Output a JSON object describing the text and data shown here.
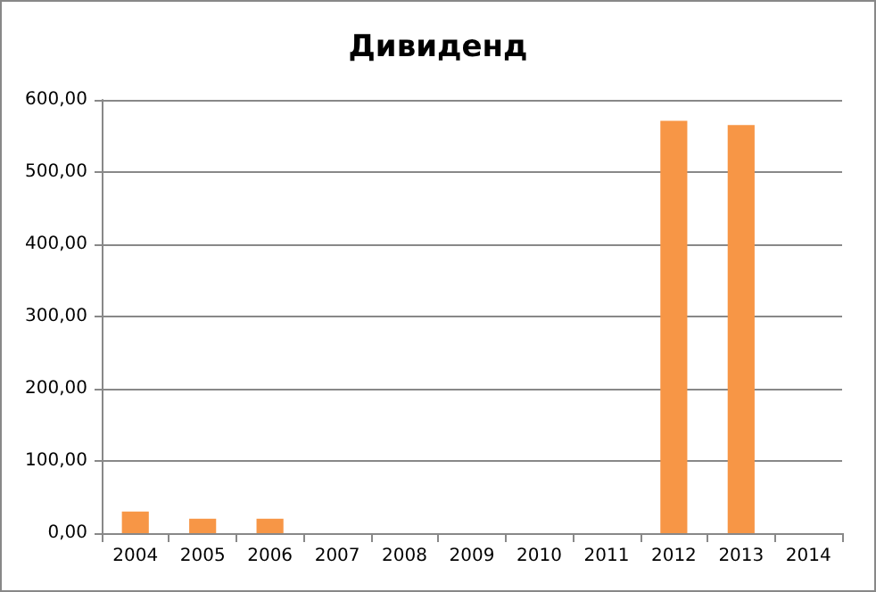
{
  "chart_data": {
    "type": "bar",
    "title": "Дивиденд",
    "categories": [
      "2004",
      "2005",
      "2006",
      "2007",
      "2008",
      "2009",
      "2010",
      "2011",
      "2012",
      "2013",
      "2014"
    ],
    "values": [
      30,
      20,
      20,
      null,
      null,
      null,
      null,
      null,
      571,
      565,
      null
    ],
    "color": "#f79646",
    "ylim": [
      0,
      600
    ],
    "yticks": [
      {
        "value": 0,
        "label": "0,00"
      },
      {
        "value": 100,
        "label": "100,00"
      },
      {
        "value": 200,
        "label": "200,00"
      },
      {
        "value": 300,
        "label": "300,00"
      },
      {
        "value": 400,
        "label": "400,00"
      },
      {
        "value": 500,
        "label": "500,00"
      },
      {
        "value": 600,
        "label": "600,00"
      }
    ],
    "grid": "y"
  }
}
